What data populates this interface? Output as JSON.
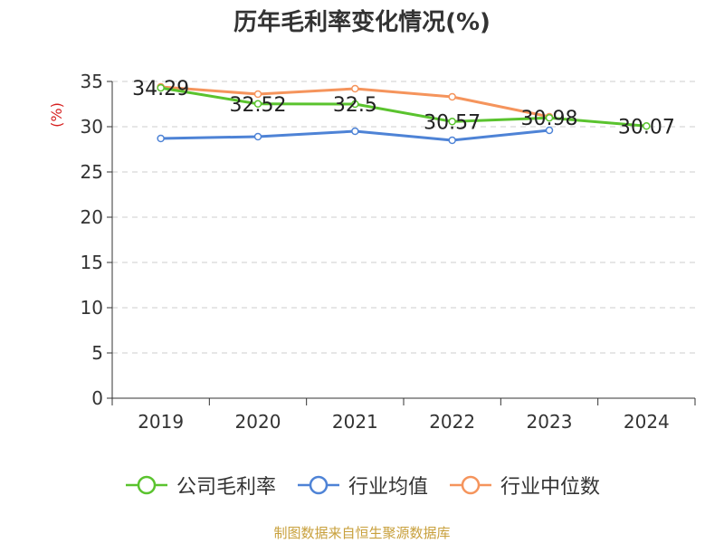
{
  "footer": "制图数据来自恒生聚源数据库",
  "chart_data": {
    "type": "line",
    "title": "历年毛利率变化情况(%)",
    "ylabel": "(%)",
    "categories": [
      "2019",
      "2020",
      "2021",
      "2022",
      "2023",
      "2024"
    ],
    "ylim": [
      0,
      35
    ],
    "yticks": [
      0,
      5,
      10,
      15,
      20,
      25,
      30,
      35
    ],
    "grid": true,
    "legend_position": "bottom",
    "series": [
      {
        "name": "公司毛利率",
        "color": "#5ac32e",
        "values": [
          34.29,
          32.52,
          32.5,
          30.57,
          30.98,
          30.07
        ],
        "labels": [
          "34.29",
          "32.52",
          "32.5",
          "30.57",
          "30.98",
          "30.07"
        ]
      },
      {
        "name": "行业均值",
        "color": "#4e83d6",
        "values": [
          28.7,
          28.9,
          29.5,
          28.5,
          29.6,
          null
        ]
      },
      {
        "name": "行业中位数",
        "color": "#f5945c",
        "values": [
          34.4,
          33.6,
          34.2,
          33.3,
          31.1,
          null
        ]
      }
    ]
  }
}
